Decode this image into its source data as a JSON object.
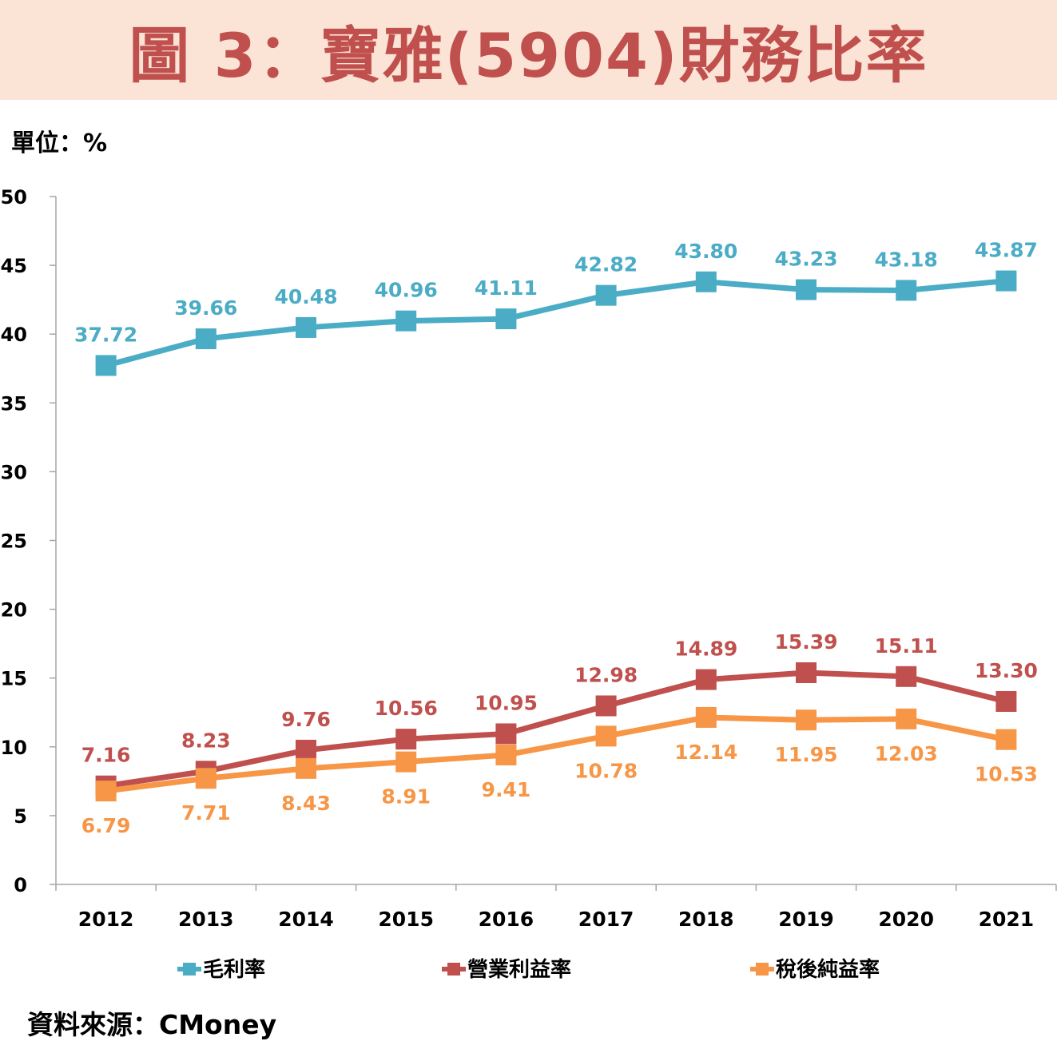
{
  "header": {
    "title": "圖 3：寶雅(5904)財務比率"
  },
  "unit_label": "單位：%",
  "source_label": "資料來源：CMoney",
  "colors": {
    "gross": "#4bacc6",
    "operating": "#c0504d",
    "net": "#f79646",
    "title": "#c0504d",
    "banner_bg": "#fbe3d6",
    "axis": "#a6a6a6"
  },
  "chart_data": {
    "type": "line",
    "categories": [
      "2012",
      "2013",
      "2014",
      "2015",
      "2016",
      "2017",
      "2018",
      "2019",
      "2020",
      "2021"
    ],
    "ylim": [
      0,
      50
    ],
    "yticks": [
      "0",
      "5",
      "10",
      "15",
      "20",
      "25",
      "30",
      "35",
      "40",
      "45",
      "50"
    ],
    "grid": false,
    "legend_position": "bottom",
    "series": [
      {
        "name": "毛利率",
        "color": "#4bacc6",
        "values": [
          37.72,
          39.66,
          40.48,
          40.96,
          41.11,
          42.82,
          43.8,
          43.23,
          43.18,
          43.87
        ],
        "labels": [
          "37.72",
          "39.66",
          "40.48",
          "40.96",
          "41.11",
          "42.82",
          "43.80",
          "43.23",
          "43.18",
          "43.87"
        ]
      },
      {
        "name": "營業利益率",
        "color": "#c0504d",
        "values": [
          7.16,
          8.23,
          9.76,
          10.56,
          10.95,
          12.98,
          14.89,
          15.39,
          15.11,
          13.3
        ],
        "labels": [
          "7.16",
          "8.23",
          "9.76",
          "10.56",
          "10.95",
          "12.98",
          "14.89",
          "15.39",
          "15.11",
          "13.30"
        ]
      },
      {
        "name": "稅後純益率",
        "color": "#f79646",
        "values": [
          6.79,
          7.71,
          8.43,
          8.91,
          9.41,
          10.78,
          12.14,
          11.95,
          12.03,
          10.53
        ],
        "labels": [
          "6.79",
          "7.71",
          "8.43",
          "8.91",
          "9.41",
          "10.78",
          "12.14",
          "11.95",
          "12.03",
          "10.53"
        ]
      }
    ]
  }
}
